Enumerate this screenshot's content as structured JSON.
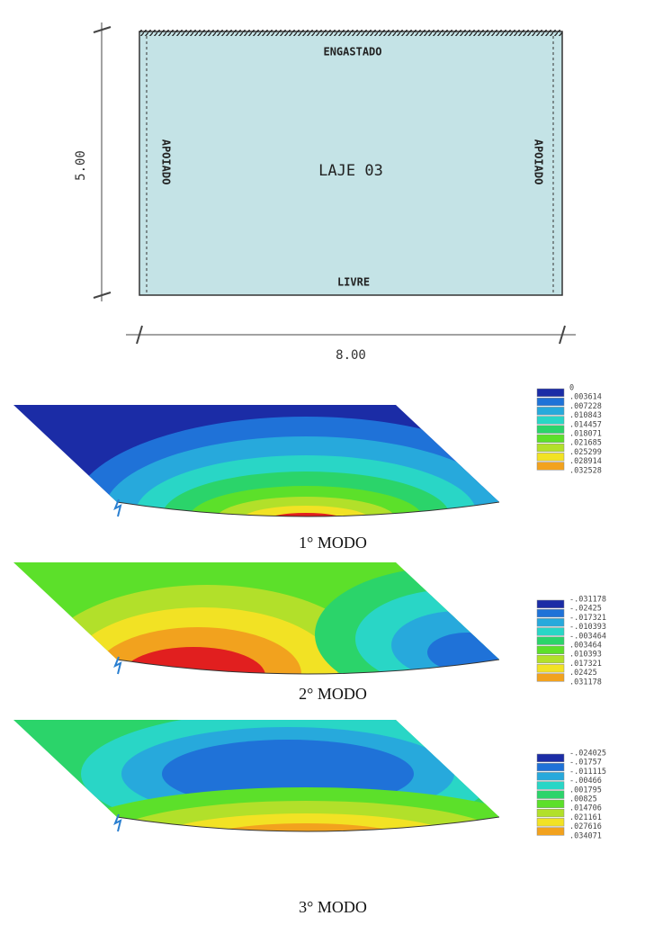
{
  "plan": {
    "top_edge": "ENGASTADO",
    "left_edge": "APOIADO",
    "right_edge": "APOIADO",
    "label": "LAJE 03",
    "bottom_edge": "LIVRE",
    "height_dim": "5.00",
    "width_dim": "8.00"
  },
  "modes": [
    {
      "caption": "1° MODO",
      "legend": [
        "0",
        ".003614",
        ".007228",
        ".010843",
        ".014457",
        ".018071",
        ".021685",
        ".025299",
        ".028914",
        ".032528"
      ]
    },
    {
      "caption": "2° MODO",
      "legend": [
        "-.031178",
        "-.02425",
        "-.017321",
        "-.010393",
        "-.003464",
        ".003464",
        ".010393",
        ".017321",
        ".02425",
        ".031178"
      ]
    },
    {
      "caption": "3° MODO",
      "legend": [
        "-.024025",
        "-.01757",
        "-.011115",
        "-.00466",
        ".001795",
        ".00825",
        ".014706",
        ".021161",
        ".027616",
        ".034071"
      ]
    }
  ]
}
